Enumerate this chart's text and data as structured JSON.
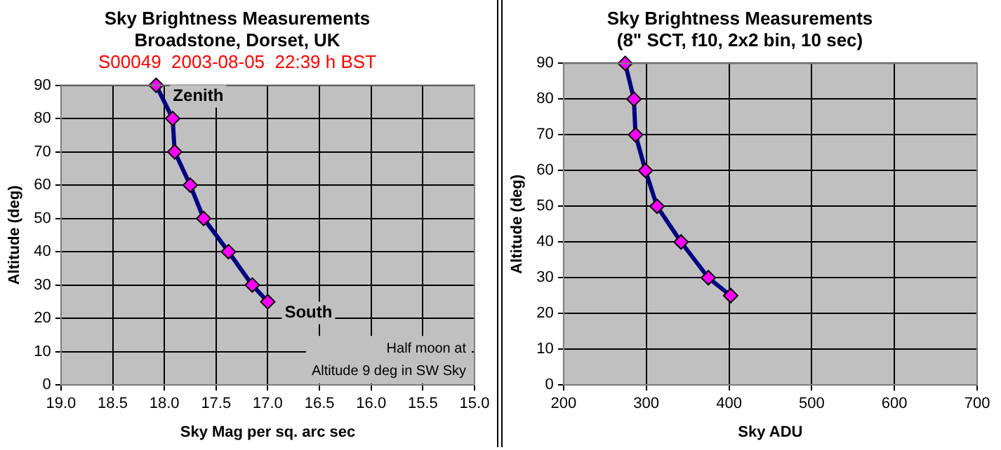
{
  "chart_data": [
    {
      "type": "line",
      "title": "Sky Brightness Measurements\nBroadstone, Dorset, UK",
      "subtitle": "S00049  2003-08-05  22:39 h BST",
      "xlabel": "Sky Mag per sq. arc sec",
      "ylabel": "Altitude (deg)",
      "series": [
        {
          "color": "#000080",
          "x": [
            18.08,
            17.92,
            17.9,
            17.75,
            17.62,
            17.38,
            17.15,
            17.0
          ],
          "values": [
            90,
            80,
            70,
            60,
            50,
            40,
            30,
            25
          ]
        }
      ],
      "xlim": [
        19,
        15
      ],
      "xticks": [
        {
          "value": 19,
          "label": "19.0"
        },
        {
          "value": 18.5,
          "label": "18.5"
        },
        {
          "value": 18,
          "label": "18.0"
        },
        {
          "value": 17.5,
          "label": "17.5"
        },
        {
          "value": 17,
          "label": "17.0"
        },
        {
          "value": 16.5,
          "label": "16.5"
        },
        {
          "value": 16,
          "label": "16.0"
        },
        {
          "value": 15.5,
          "label": "15.5"
        },
        {
          "value": 15,
          "label": "15.0"
        }
      ],
      "ylim": [
        0,
        90
      ],
      "yticks": [
        0,
        10,
        20,
        30,
        40,
        50,
        60,
        70,
        80,
        90
      ],
      "grid": true,
      "marker": "diamond",
      "legend": false,
      "annotations": [
        {
          "text": "Zenith",
          "x": 18.08,
          "y": 90
        },
        {
          "text": "South",
          "x": 17.0,
          "y": 25
        },
        "Half moon at\nAltitude 9 deg in SW Sky"
      ]
    },
    {
      "type": "line",
      "title": "Sky Brightness Measurements\n(8\" SCT, f10, 2x2 bin, 10 sec)",
      "xlabel": "Sky ADU",
      "ylabel": "Altitude (deg)",
      "series": [
        {
          "color": "#000080",
          "x": [
            274.5,
            285,
            287,
            299,
            313,
            342,
            375,
            402
          ],
          "values": [
            90,
            80,
            70,
            60,
            50,
            40,
            30,
            25
          ]
        }
      ],
      "xlim": [
        200,
        700
      ],
      "xticks": [
        200,
        300,
        400,
        500,
        600,
        700
      ],
      "ylim": [
        0,
        90
      ],
      "yticks": [
        0,
        10,
        20,
        30,
        40,
        50,
        60,
        70,
        80,
        90
      ],
      "grid": true,
      "marker": "diamond",
      "legend": false
    }
  ]
}
